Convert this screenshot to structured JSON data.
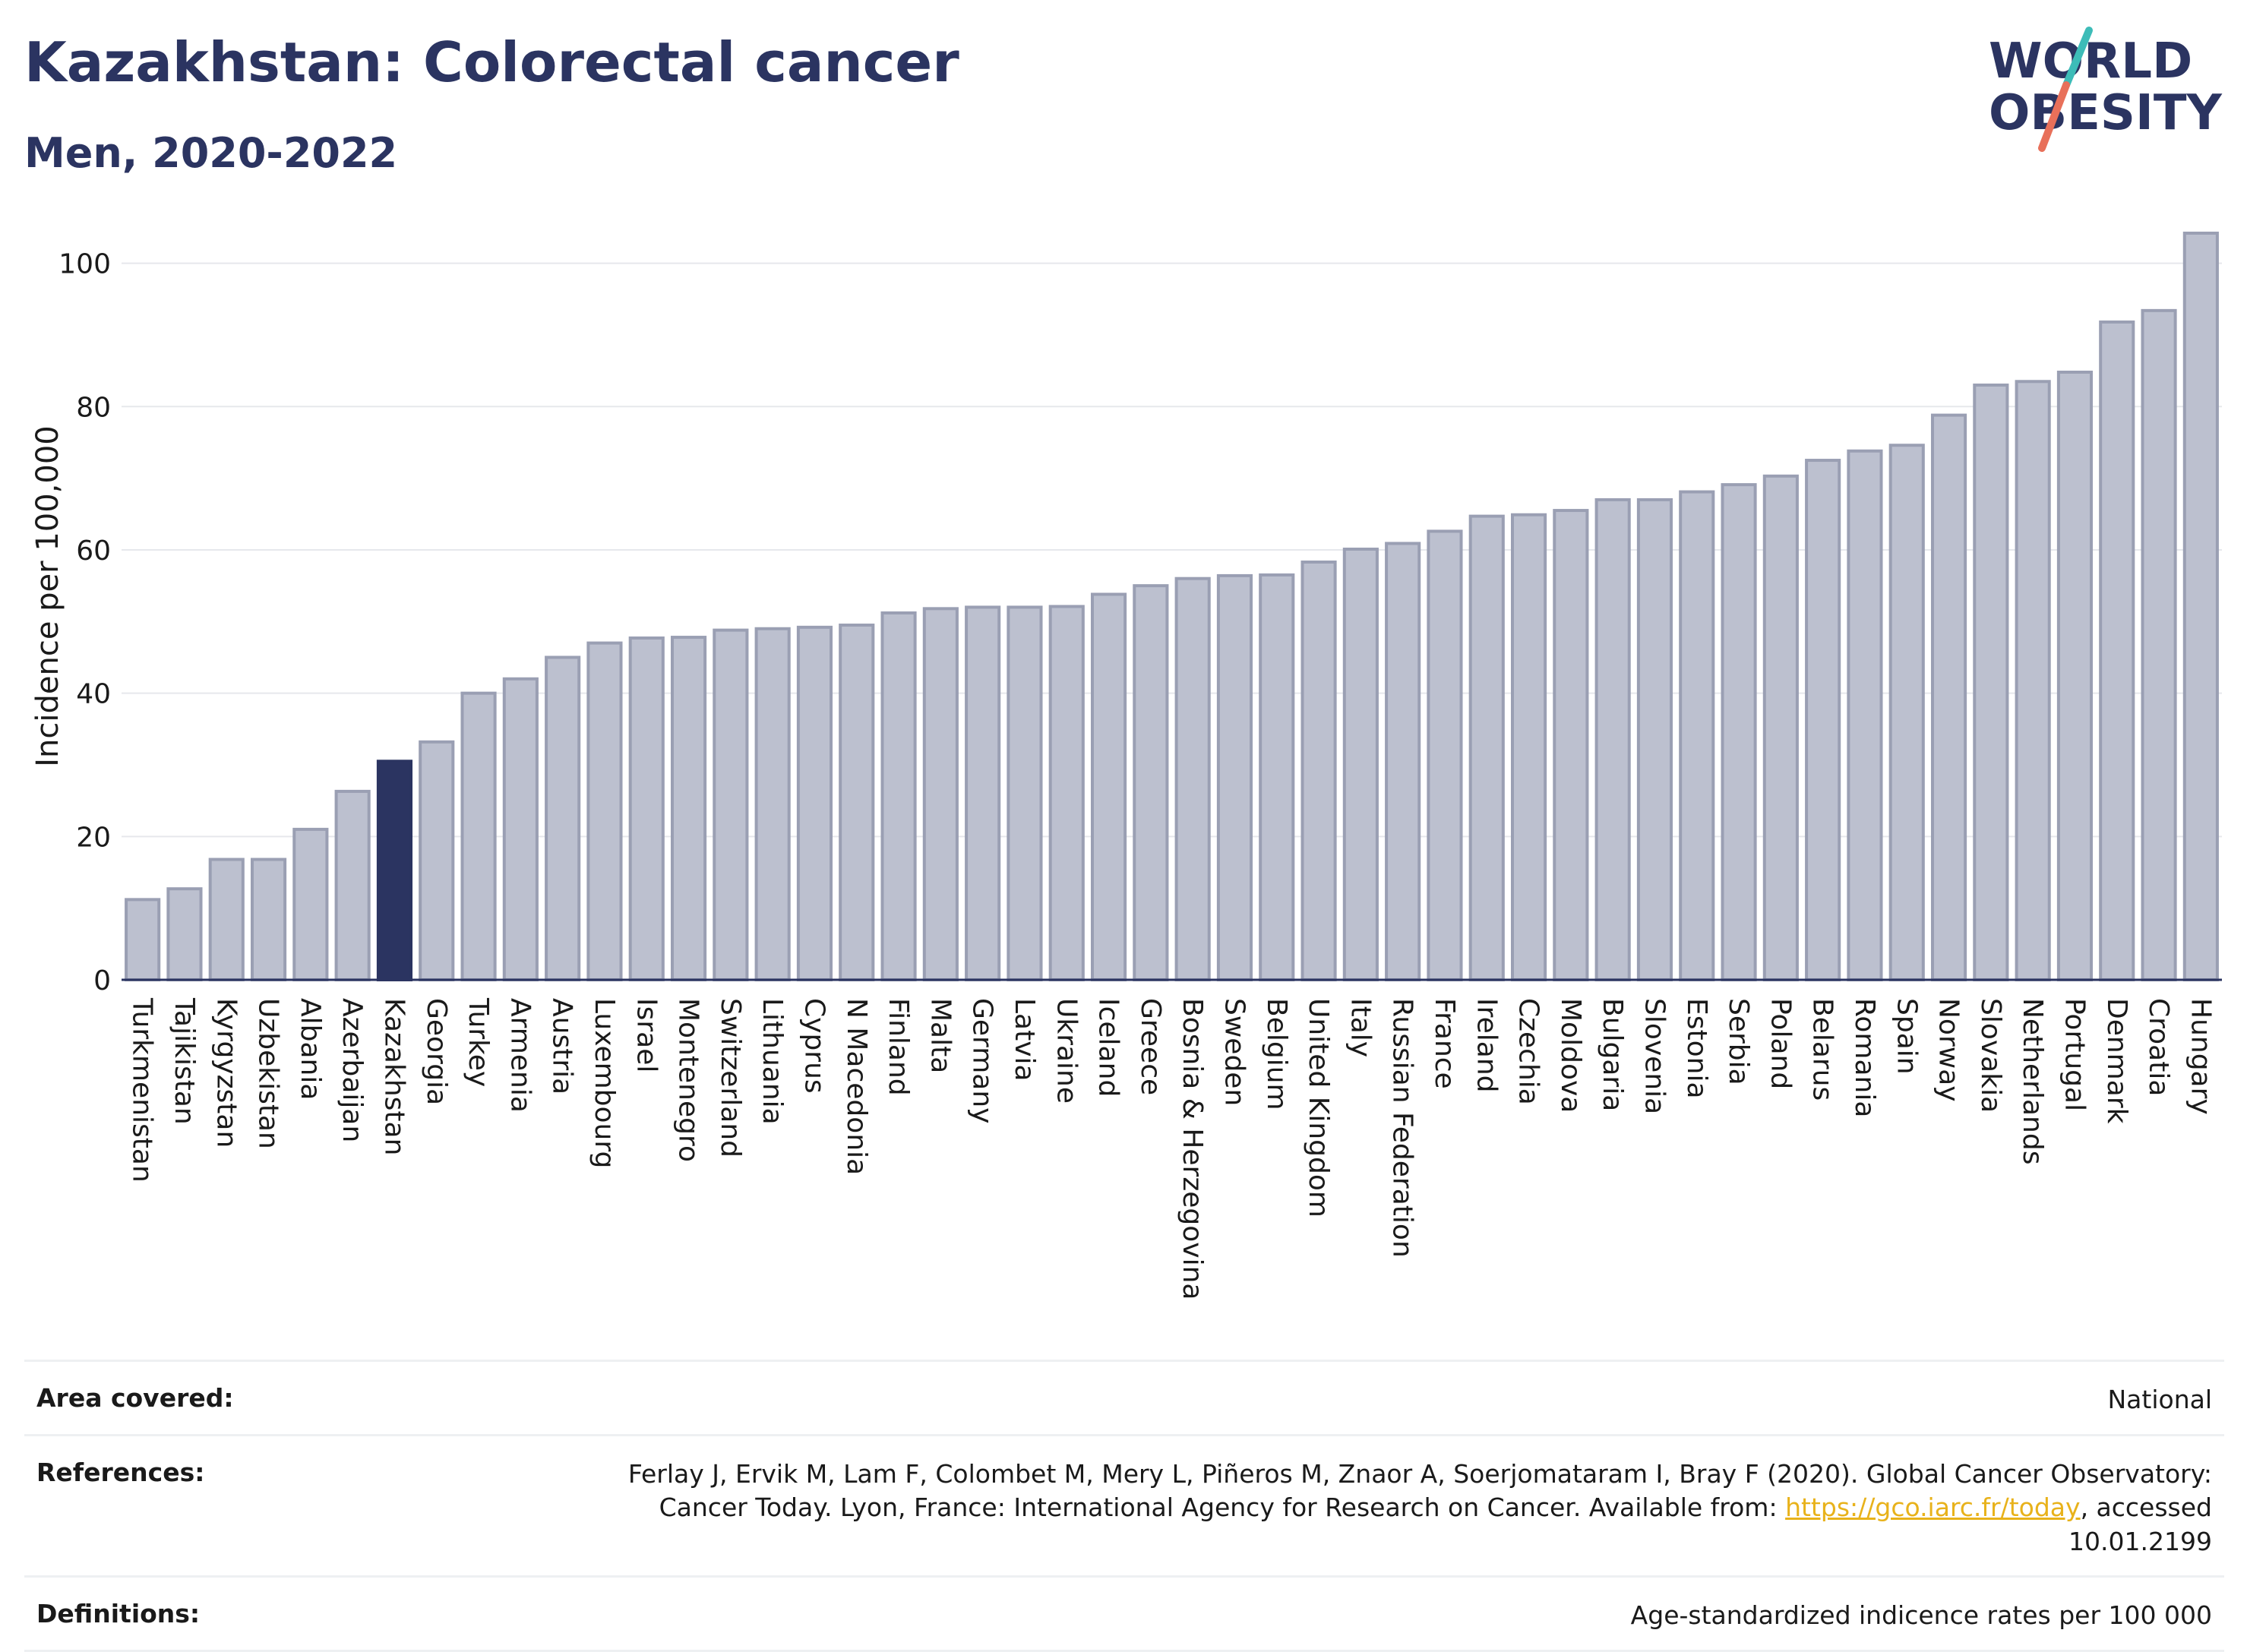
{
  "header": {
    "title": "Kazakhstan: Colorectal cancer",
    "subtitle": "Men, 2020-2022",
    "logo_line1": "WORLD",
    "logo_line2": "OBESITY"
  },
  "colors": {
    "bar_default": "#bcc0cf",
    "bar_default_stroke": "#9a9fb3",
    "bar_highlight": "#2b3461",
    "title": "#2b3461",
    "grid": "#e6e8ec",
    "link": "#e8b21b",
    "logo_teal": "#3dbcb8",
    "logo_coral": "#e8705a"
  },
  "chart_data": {
    "type": "bar",
    "title": "",
    "xlabel": "",
    "ylabel": "Incidence per 100,000",
    "ylim": [
      0,
      106
    ],
    "yticks": [
      0,
      20,
      40,
      60,
      80,
      100
    ],
    "grid": true,
    "highlight": "Kazakhstan",
    "categories": [
      "Turkmenistan",
      "Tajikistan",
      "Kyrgyzstan",
      "Uzbekistan",
      "Albania",
      "Azerbaijan",
      "Kazakhstan",
      "Georgia",
      "Turkey",
      "Armenia",
      "Austria",
      "Luxembourg",
      "Israel",
      "Montenegro",
      "Switzerland",
      "Lithuania",
      "Cyprus",
      "N Macedonia",
      "Finland",
      "Malta",
      "Germany",
      "Latvia",
      "Ukraine",
      "Iceland",
      "Greece",
      "Bosnia & Herzegovina",
      "Sweden",
      "Belgium",
      "United Kingdom",
      "Italy",
      "Russian Federation",
      "France",
      "Ireland",
      "Czechia",
      "Moldova",
      "Bulgaria",
      "Slovenia",
      "Estonia",
      "Serbia",
      "Poland",
      "Belarus",
      "Romania",
      "Spain",
      "Norway",
      "Slovakia",
      "Netherlands",
      "Portugal",
      "Denmark",
      "Croatia",
      "Hungary"
    ],
    "values": [
      11.2,
      12.7,
      16.8,
      16.8,
      21.0,
      26.3,
      30.5,
      33.2,
      40.0,
      42.0,
      45.0,
      47.0,
      47.7,
      47.8,
      48.8,
      49.0,
      49.2,
      49.5,
      51.2,
      51.8,
      52.0,
      52.0,
      52.1,
      53.8,
      55.0,
      56.0,
      56.4,
      56.5,
      58.3,
      60.1,
      60.9,
      62.6,
      64.7,
      64.9,
      65.5,
      67.0,
      67.0,
      68.1,
      69.1,
      70.3,
      72.5,
      73.8,
      74.6,
      78.8,
      83.0,
      83.5,
      84.8,
      91.8,
      93.4,
      104.2
    ]
  },
  "info": {
    "area_label": "Area covered:",
    "area_value": "National",
    "references_label": "References:",
    "references_text_before": "Ferlay J, Ervik M, Lam F, Colombet M, Mery L, Piñeros M, Znaor A, Soerjomataram I, Bray F (2020). Global Cancer Observatory: Cancer Today. Lyon, France: International Agency for Research on Cancer. Available from: ",
    "references_link": "https://gco.iarc.fr/today",
    "references_text_after": ", accessed 10.01.2199",
    "definitions_label": "Definitions:",
    "definitions_value": "Age-standardized indicence rates per 100 000"
  }
}
